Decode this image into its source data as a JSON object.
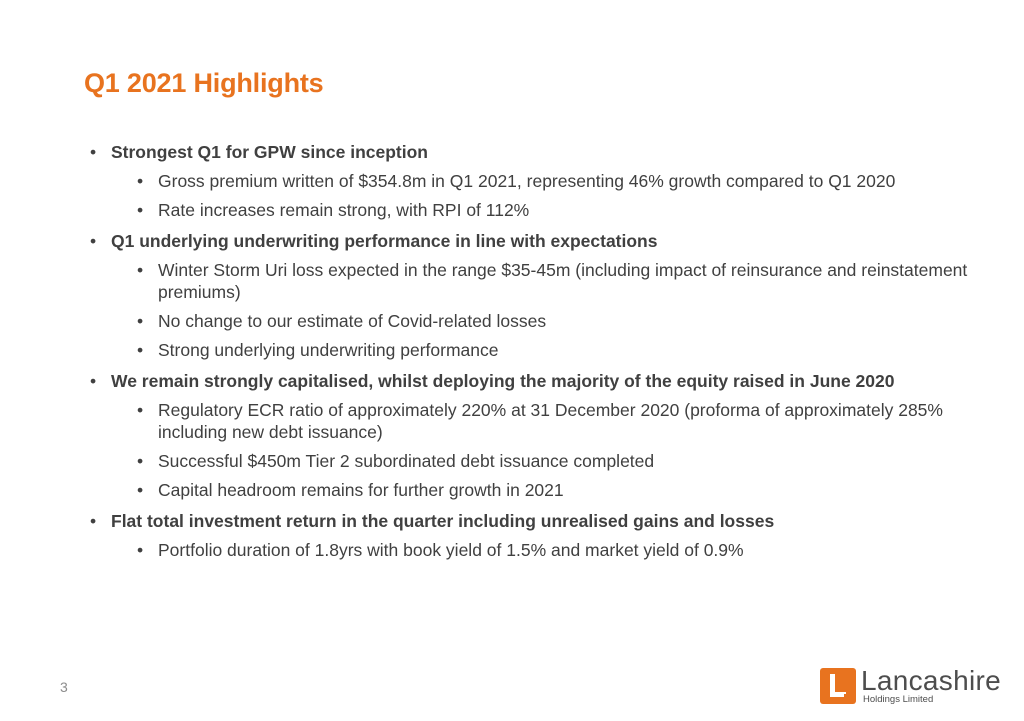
{
  "slide": {
    "title": "Q1 2021 Highlights",
    "page_number": "3",
    "bullet_glyph": "•"
  },
  "sections": [
    {
      "heading": "Strongest Q1 for GPW since inception",
      "items": [
        "Gross premium written of $354.8m in Q1 2021, representing 46% growth compared to Q1 2020",
        "Rate increases remain strong, with RPI of 112%"
      ]
    },
    {
      "heading": "Q1 underlying underwriting performance in line with expectations",
      "items": [
        "Winter Storm Uri loss expected in the range $35-45m (including impact of reinsurance and reinstatement premiums)",
        "No change to our estimate of Covid-related losses",
        "Strong underlying underwriting performance"
      ]
    },
    {
      "heading": "We remain strongly capitalised, whilst deploying the majority of the equity raised in June 2020",
      "items": [
        "Regulatory ECR ratio of approximately 220% at 31 December 2020 (proforma of approximately 285% including new debt issuance)",
        "Successful $450m Tier 2 subordinated debt issuance completed",
        "Capital headroom remains for further growth in 2021"
      ]
    },
    {
      "heading": "Flat total investment return in the quarter including unrealised gains and losses",
      "items": [
        "Portfolio duration of 1.8yrs with book yield of 1.5% and market yield of 0.9%"
      ]
    }
  ],
  "logo": {
    "name": "Lancashire",
    "subtitle": "Holdings Limited",
    "brand_color": "#e8731f",
    "icon": "lancashire-l-logo-icon"
  },
  "colors": {
    "title": "#e8731f",
    "text": "#404040",
    "page_number": "#8c8c8c"
  }
}
